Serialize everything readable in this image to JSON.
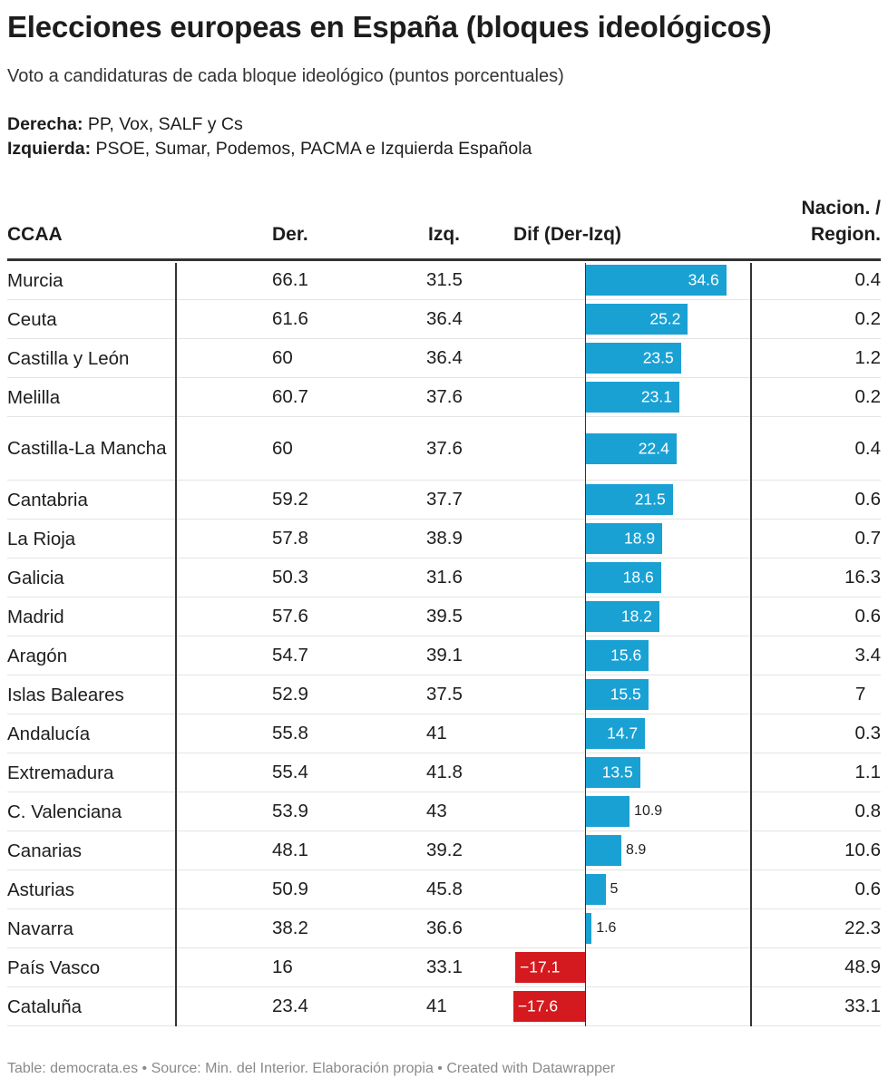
{
  "title": "Elecciones europeas en España (bloques ideológicos)",
  "subtitle": "Voto a candidaturas de cada bloque ideológico (puntos porcentuales)",
  "notes": [
    {
      "label": "Derecha:",
      "text": " PP, Vox, SALF y Cs"
    },
    {
      "label": "Izquierda:",
      "text": " PSOE, Sumar, Podemos, PACMA e Izquierda Española"
    }
  ],
  "columns": {
    "ccaa": "CCAA",
    "der": "Der.",
    "izq": "Izq.",
    "dif": "Dif (Der-Izq)",
    "nac_line1": "Nacion. /",
    "nac_line2": "Region."
  },
  "colors": {
    "positive": "#1aa1d4",
    "negative": "#d41a1f"
  },
  "chart_data": {
    "type": "table",
    "bar_column": "Dif (Der-Izq)",
    "rows": [
      {
        "ccaa": "Murcia",
        "der": "66.1",
        "izq": "31.5",
        "dif": 34.6,
        "dif_label": "34.6",
        "nac": "0.4"
      },
      {
        "ccaa": "Ceuta",
        "der": "61.6",
        "izq": "36.4",
        "dif": 25.2,
        "dif_label": "25.2",
        "nac": "0.2"
      },
      {
        "ccaa": "Castilla y León",
        "der": "60",
        "izq": "36.4",
        "dif": 23.5,
        "dif_label": "23.5",
        "nac": "1.2"
      },
      {
        "ccaa": "Melilla",
        "der": "60.7",
        "izq": "37.6",
        "dif": 23.1,
        "dif_label": "23.1",
        "nac": "0.2"
      },
      {
        "ccaa": "Castilla-La Mancha",
        "der": "60",
        "izq": "37.6",
        "dif": 22.4,
        "dif_label": "22.4",
        "nac": "0.4",
        "tall": true
      },
      {
        "ccaa": "Cantabria",
        "der": "59.2",
        "izq": "37.7",
        "dif": 21.5,
        "dif_label": "21.5",
        "nac": "0.6"
      },
      {
        "ccaa": "La Rioja",
        "der": "57.8",
        "izq": "38.9",
        "dif": 18.9,
        "dif_label": "18.9",
        "nac": "0.7"
      },
      {
        "ccaa": "Galicia",
        "der": "50.3",
        "izq": "31.6",
        "dif": 18.6,
        "dif_label": "18.6",
        "nac": "16.3"
      },
      {
        "ccaa": "Madrid",
        "der": "57.6",
        "izq": "39.5",
        "dif": 18.2,
        "dif_label": "18.2",
        "nac": "0.6"
      },
      {
        "ccaa": "Aragón",
        "der": "54.7",
        "izq": "39.1",
        "dif": 15.6,
        "dif_label": "15.6",
        "nac": "3.4"
      },
      {
        "ccaa": "Islas Baleares",
        "der": "52.9",
        "izq": "37.5",
        "dif": 15.5,
        "dif_label": "15.5",
        "nac": "7"
      },
      {
        "ccaa": "Andalucía",
        "der": "55.8",
        "izq": "41",
        "dif": 14.7,
        "dif_label": "14.7",
        "nac": "0.3"
      },
      {
        "ccaa": "Extremadura",
        "der": "55.4",
        "izq": "41.8",
        "dif": 13.5,
        "dif_label": "13.5",
        "nac": "1.1"
      },
      {
        "ccaa": "C. Valenciana",
        "der": "53.9",
        "izq": "43",
        "dif": 10.9,
        "dif_label": "10.9",
        "nac": "0.8"
      },
      {
        "ccaa": "Canarias",
        "der": "48.1",
        "izq": "39.2",
        "dif": 8.9,
        "dif_label": "8.9",
        "nac": "10.6"
      },
      {
        "ccaa": "Asturias",
        "der": "50.9",
        "izq": "45.8",
        "dif": 5,
        "dif_label": "5",
        "nac": "0.6"
      },
      {
        "ccaa": "Navarra",
        "der": "38.2",
        "izq": "36.6",
        "dif": 1.6,
        "dif_label": "1.6",
        "nac": "22.3"
      },
      {
        "ccaa": "País Vasco",
        "der": "16",
        "izq": "33.1",
        "dif": -17.1,
        "dif_label": "−17.1",
        "nac": "48.9"
      },
      {
        "ccaa": "Cataluña",
        "der": "23.4",
        "izq": "41",
        "dif": -17.6,
        "dif_label": "−17.6",
        "nac": "33.1"
      }
    ]
  },
  "footer": "Table: democrata.es • Source: Min. del Interior. Elaboración propia • Created with Datawrapper"
}
